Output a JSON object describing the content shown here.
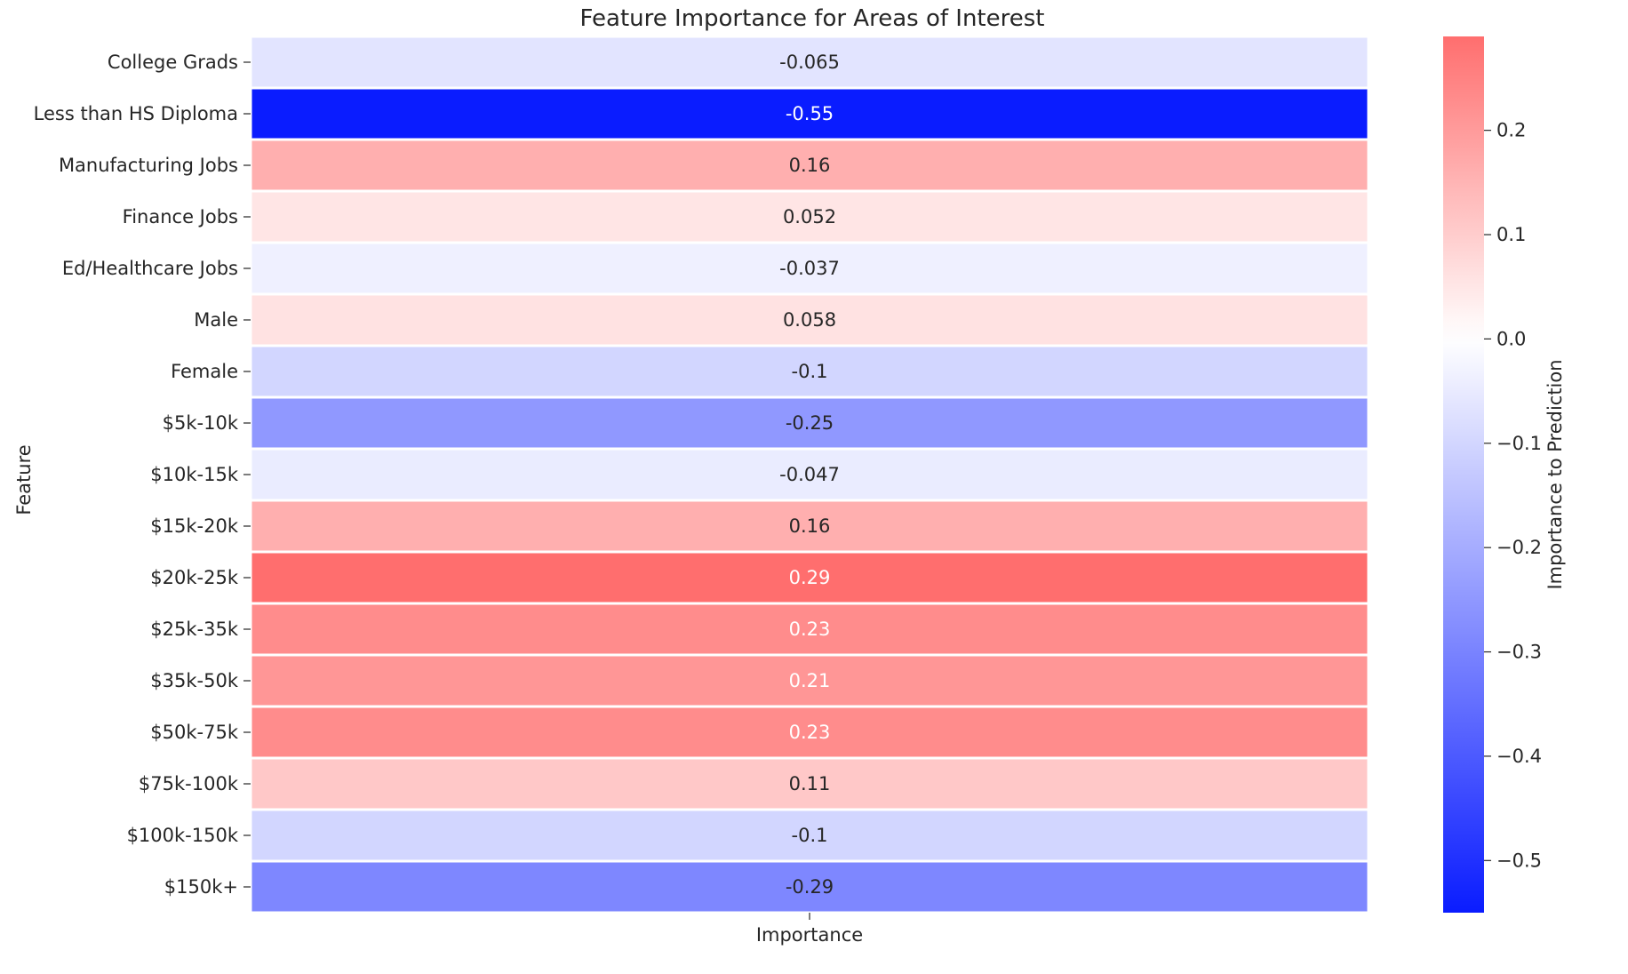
{
  "chart_data": {
    "type": "heatmap",
    "title": "Feature Importance for Areas of Interest",
    "xlabel": "",
    "ylabel": "Feature",
    "columns": [
      "Importance"
    ],
    "rows": [
      "College Grads",
      "Less than HS Diploma",
      "Manufacturing Jobs",
      "Finance Jobs",
      "Ed/Healthcare Jobs",
      "Male",
      "Female",
      "$5k-10k",
      "$10k-15k",
      "$15k-20k",
      "$20k-25k",
      "$25k-35k",
      "$35k-50k",
      "$50k-75k",
      "$75k-100k",
      "$100k-150k",
      "$150k+"
    ],
    "values": [
      -0.065,
      -0.55,
      0.16,
      0.052,
      -0.037,
      0.058,
      -0.1,
      -0.25,
      -0.047,
      0.16,
      0.29,
      0.23,
      0.21,
      0.23,
      0.11,
      -0.1,
      -0.29
    ],
    "value_labels": [
      "-0.065",
      "-0.55",
      "0.16",
      "0.052",
      "-0.037",
      "0.058",
      "-0.1",
      "-0.25",
      "-0.047",
      "0.16",
      "0.29",
      "0.23",
      "0.21",
      "0.23",
      "0.11",
      "-0.1",
      "-0.29"
    ],
    "colorbar": {
      "label": "Importance to Prediction",
      "min": -0.55,
      "max": 0.29,
      "ticks": [
        0.2,
        0.1,
        0.0,
        -0.1,
        -0.2,
        -0.3,
        -0.4,
        -0.5
      ],
      "tick_labels": [
        "0.2",
        "0.1",
        "0.0",
        "−0.1",
        "−0.2",
        "−0.3",
        "−0.4",
        "−0.5"
      ]
    },
    "colors": {
      "negative_end": "#0a1cff",
      "center": "#ffffff",
      "positive_end": "#ff6e6e",
      "text_dark": "#262626",
      "text_light": "#ffffff"
    },
    "grid": false
  }
}
